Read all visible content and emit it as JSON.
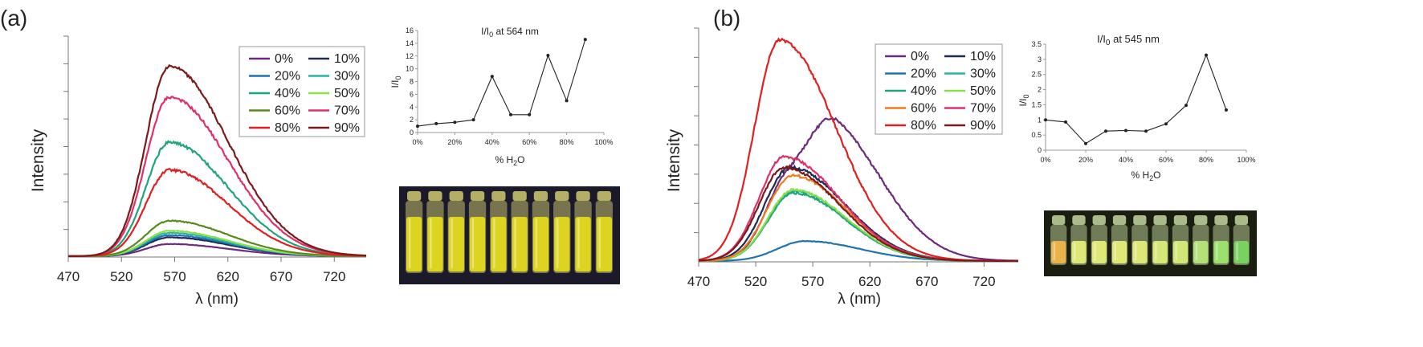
{
  "panels": [
    {
      "label": "(a)"
    },
    {
      "label": "(b)"
    }
  ],
  "chart_data": [
    {
      "id": "a_main",
      "type": "line",
      "xlabel": "λ (nm)",
      "ylabel": "Intensity",
      "xlim": [
        470,
        750
      ],
      "ylim": [
        0,
        100
      ],
      "xticks": [
        "470",
        "520",
        "570",
        "620",
        "670",
        "720"
      ],
      "legend_position": "top-right",
      "series": [
        {
          "name": "0%",
          "color": "#6b2a7a",
          "peak": 5.5,
          "center": 565,
          "sigL": 22,
          "sigR": 55,
          "noise": 0.0
        },
        {
          "name": "10%",
          "color": "#1f2a55",
          "peak": 8.5,
          "center": 565,
          "sigL": 22,
          "sigR": 55,
          "noise": 0.0
        },
        {
          "name": "20%",
          "color": "#1f73b0",
          "peak": 9.5,
          "center": 565,
          "sigL": 22,
          "sigR": 55,
          "noise": 0.0
        },
        {
          "name": "30%",
          "color": "#2bb5a0",
          "peak": 10.5,
          "center": 565,
          "sigL": 22,
          "sigR": 55,
          "noise": 0.0
        },
        {
          "name": "40%",
          "color": "#1fa57a",
          "peak": 51.5,
          "center": 565,
          "sigL": 22,
          "sigR": 55,
          "noise": 0.0
        },
        {
          "name": "50%",
          "color": "#8ae04a",
          "peak": 11.5,
          "center": 565,
          "sigL": 22,
          "sigR": 55,
          "noise": 0.0
        },
        {
          "name": "60%",
          "color": "#5a8a1f",
          "peak": 16.0,
          "center": 565,
          "sigL": 22,
          "sigR": 55,
          "noise": 0.0
        },
        {
          "name": "70%",
          "color": "#e0306a",
          "peak": 72.0,
          "center": 565,
          "sigL": 22,
          "sigR": 55,
          "noise": 0.0
        },
        {
          "name": "80%",
          "color": "#e02020",
          "peak": 39.0,
          "center": 565,
          "sigL": 22,
          "sigR": 55,
          "noise": 0.0
        },
        {
          "name": "90%",
          "color": "#7a1a1a",
          "peak": 86.0,
          "center": 565,
          "sigL": 22,
          "sigR": 55,
          "noise": 0.0
        }
      ]
    },
    {
      "id": "a_inset",
      "type": "line",
      "title": "I/I0 at 564 nm",
      "xlabel": "% H2O",
      "ylabel": "I/I0",
      "xlim": [
        0,
        100
      ],
      "ylim": [
        0,
        16
      ],
      "xticks": [
        "0%",
        "20%",
        "40%",
        "60%",
        "80%",
        "100%"
      ],
      "yticks": [
        "0",
        "2",
        "4",
        "6",
        "8",
        "10",
        "12",
        "14",
        "16"
      ],
      "x": [
        0,
        10,
        20,
        30,
        40,
        50,
        60,
        70,
        80,
        90
      ],
      "values": [
        1.0,
        1.4,
        1.6,
        2.0,
        8.8,
        2.8,
        2.8,
        12.1,
        5.0,
        14.6
      ]
    },
    {
      "id": "b_main",
      "type": "line",
      "xlabel": "λ (nm)",
      "ylabel": "Intensity",
      "xlim": [
        470,
        750
      ],
      "ylim": [
        0,
        100
      ],
      "xticks": [
        "470",
        "520",
        "570",
        "620",
        "670",
        "720"
      ],
      "legend_position": "top-right",
      "series": [
        {
          "name": "0%",
          "color": "#6b2a7a",
          "peak": 32.0,
          "center": 548,
          "sigL": 20,
          "sigR": 48,
          "peak2": 39.0,
          "center2": 592,
          "sig2": 24
        },
        {
          "name": "10%",
          "color": "#1f2a55",
          "peak": 40.0,
          "center": 550,
          "sigL": 22,
          "sigR": 48
        },
        {
          "name": "20%",
          "color": "#1f73b0",
          "peak": 8.5,
          "center": 563,
          "sigL": 24,
          "sigR": 48
        },
        {
          "name": "30%",
          "color": "#2bb5a0",
          "peak": 30.0,
          "center": 553,
          "sigL": 22,
          "sigR": 46
        },
        {
          "name": "40%",
          "color": "#1fa57a",
          "peak": 29.0,
          "center": 553,
          "sigL": 22,
          "sigR": 46
        },
        {
          "name": "50%",
          "color": "#8ae04a",
          "peak": 30.5,
          "center": 553,
          "sigL": 22,
          "sigR": 46
        },
        {
          "name": "60%",
          "color": "#f07a20",
          "peak": 36.5,
          "center": 552,
          "sigL": 22,
          "sigR": 47
        },
        {
          "name": "70%",
          "color": "#e0306a",
          "peak": 44.5,
          "center": 545,
          "sigL": 22,
          "sigR": 48
        },
        {
          "name": "80%",
          "color": "#e02020",
          "peak": 94.5,
          "center": 541,
          "sigL": 22,
          "sigR": 49
        },
        {
          "name": "90%",
          "color": "#7a1a1a",
          "peak": 40.0,
          "center": 545,
          "sigL": 22,
          "sigR": 48
        }
      ]
    },
    {
      "id": "b_inset",
      "type": "line",
      "title": "I/I0 at 545 nm",
      "xlabel": "% H2O",
      "ylabel": "I/I0",
      "xlim": [
        0,
        100
      ],
      "ylim": [
        0,
        3.5
      ],
      "xticks": [
        "0%",
        "20%",
        "40%",
        "60%",
        "80%",
        "100%"
      ],
      "yticks": [
        "0",
        "0.5",
        "1",
        "1.5",
        "2",
        "2.5",
        "3",
        "3.5"
      ],
      "x": [
        0,
        10,
        20,
        30,
        40,
        50,
        60,
        70,
        80,
        90
      ],
      "values": [
        1.0,
        0.93,
        0.22,
        0.63,
        0.65,
        0.63,
        0.87,
        1.48,
        3.14,
        1.33
      ]
    }
  ],
  "photos": [
    {
      "id": "a_photo",
      "vials": 10,
      "glass_color": "#e8e27a",
      "liquid_color": "#e6dc1e",
      "bg_color": "#1a1a2a"
    },
    {
      "id": "b_photo",
      "vials": 10,
      "glass_color": "#d8f0b0",
      "liquid_colors": [
        "#f5b64a",
        "#e8f07a",
        "#e8f07a",
        "#e8f07a",
        "#e6f07a",
        "#e0f07a",
        "#d8f07a",
        "#b8e87a",
        "#a0e870",
        "#7ad860"
      ],
      "bg_color": "#1a1e10"
    }
  ]
}
